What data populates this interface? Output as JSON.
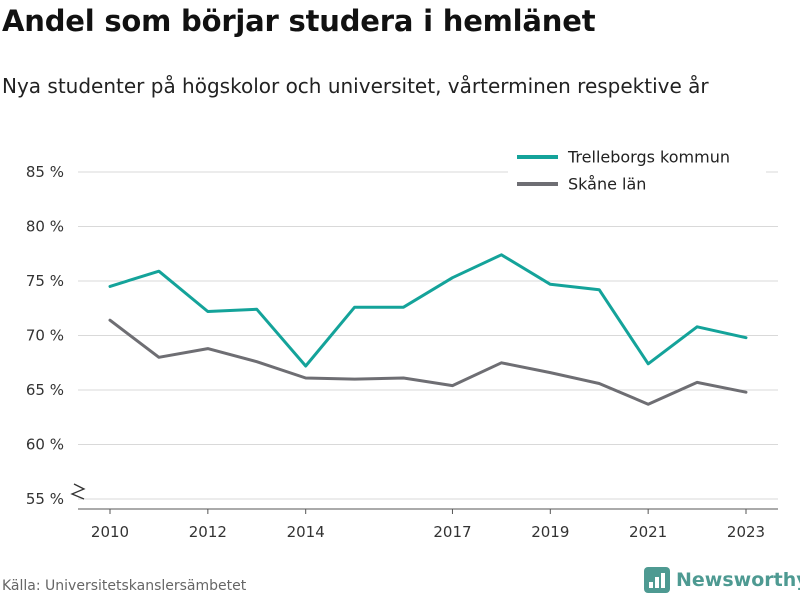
{
  "title": "Andel som börjar studera i hemlänet",
  "subtitle": "Nya studenter på högskolor och universitet, vårterminen respektive år",
  "source": "Källa: Universitetskanslersämbetet",
  "brand": {
    "name": "Newsworthy",
    "icon": "bar-chart-logo-icon",
    "color": "#4e9a92"
  },
  "chart_data": {
    "type": "line",
    "title": "",
    "xlabel": "",
    "ylabel": "",
    "x": [
      2010,
      2011,
      2012,
      2013,
      2014,
      2015,
      2016,
      2017,
      2018,
      2019,
      2020,
      2021,
      2022,
      2023
    ],
    "x_tick_labels": [
      "2010",
      "2012",
      "2014",
      "2017",
      "2019",
      "2021",
      "2023"
    ],
    "y_tick_labels": [
      "55 %",
      "60 %",
      "65 %",
      "70 %",
      "75 %",
      "80 %",
      "85 %"
    ],
    "ylim": [
      55,
      85
    ],
    "y_axis_break": true,
    "grid": "horizontal",
    "legend_position": "top-right",
    "series": [
      {
        "name": "Trelleborgs kommun",
        "color": "#14a39a",
        "values": [
          74.5,
          75.9,
          72.2,
          72.4,
          67.2,
          72.6,
          72.6,
          75.3,
          77.4,
          74.7,
          74.2,
          67.4,
          70.8,
          69.8
        ]
      },
      {
        "name": "Skåne län",
        "color": "#6e6e73",
        "values": [
          71.4,
          68.0,
          68.8,
          67.6,
          66.1,
          66.0,
          66.1,
          65.4,
          67.5,
          66.6,
          65.6,
          63.7,
          65.7,
          64.8
        ]
      }
    ]
  }
}
